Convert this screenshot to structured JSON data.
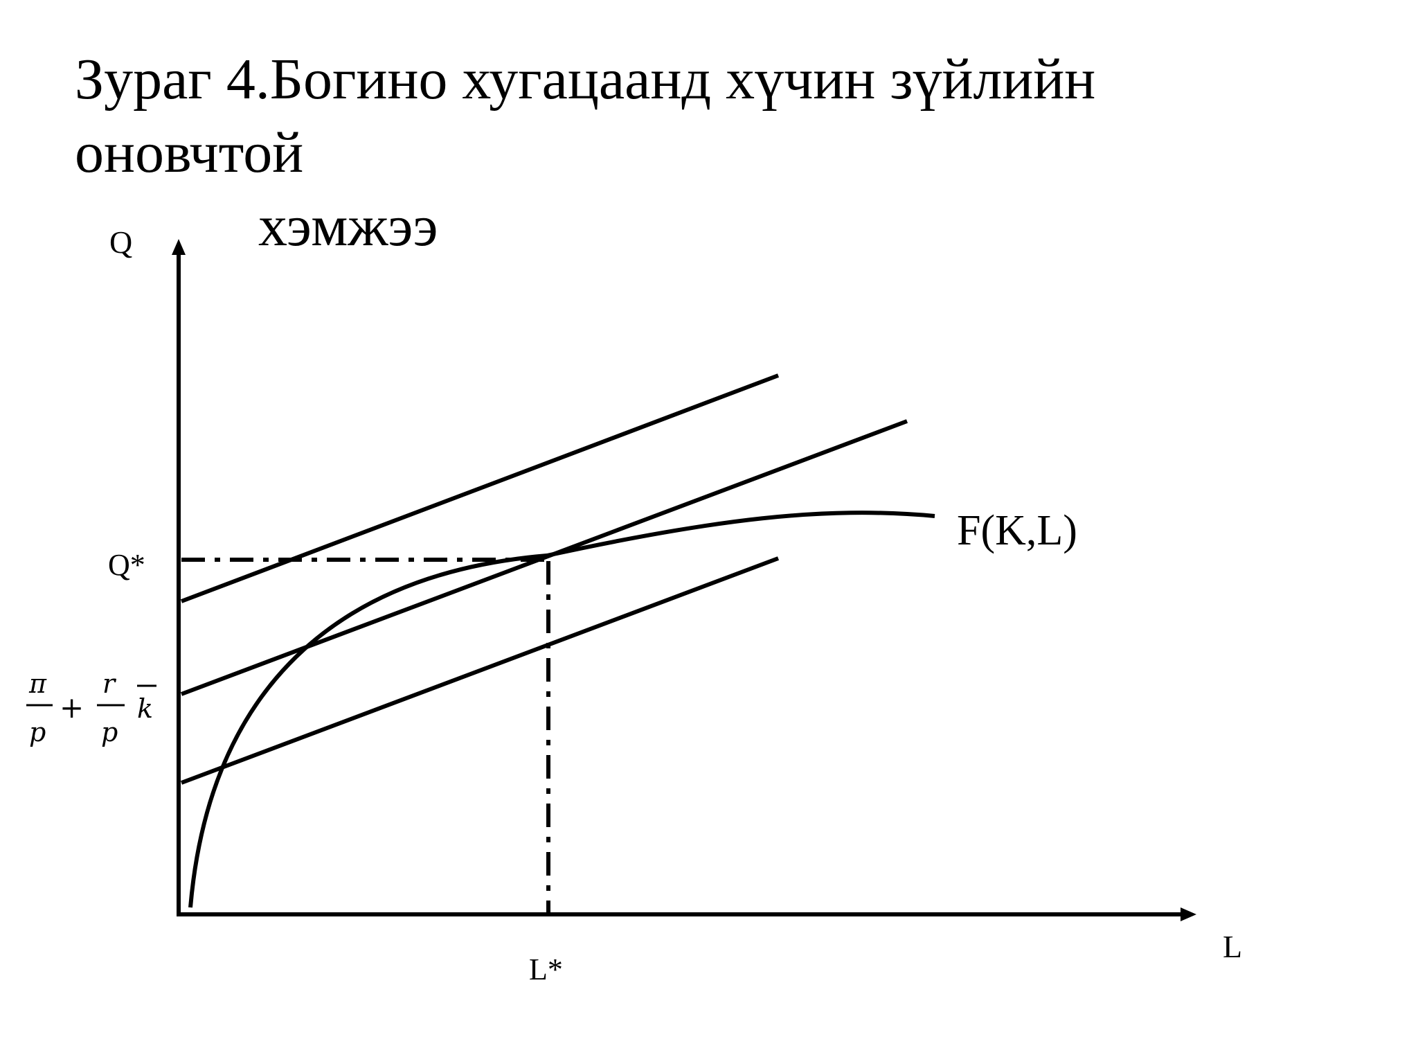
{
  "title": {
    "line1": "Зураг 4.Богино хугацаанд хүчин зүйлийн оновчтой",
    "line2": "хэмжээ"
  },
  "axes": {
    "y_label": "Q",
    "x_label": "L"
  },
  "markers": {
    "q_star": "Q*",
    "l_star": "L*"
  },
  "curve": {
    "label": "F(K,L)"
  },
  "intercept_formula": {
    "pi": "π",
    "p1": "p",
    "plus": "+",
    "r": "r",
    "p2": "p",
    "k": "k"
  }
}
